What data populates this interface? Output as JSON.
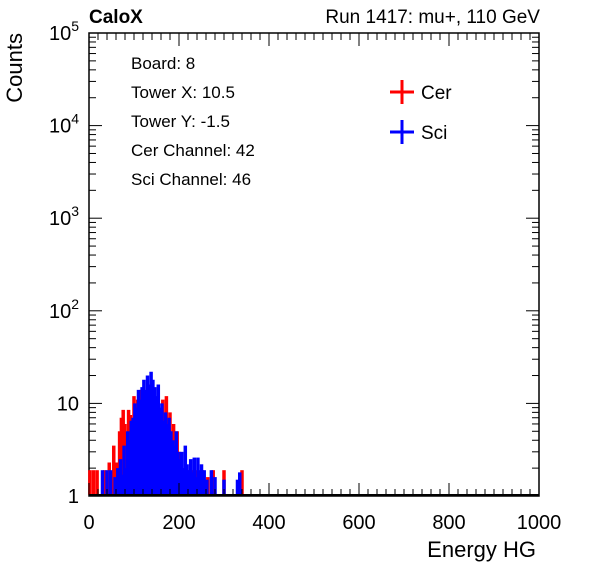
{
  "header": {
    "left_label": "CaloX",
    "right_label": "Run 1417: mu+, 110 GeV"
  },
  "info_box": {
    "board": "Board: 8",
    "tower_x": "Tower X: 10.5",
    "tower_y": "Tower Y: -1.5",
    "cer_channel": "Cer Channel: 42",
    "sci_channel": "Sci Channel: 46"
  },
  "chart_data": {
    "type": "line",
    "xlabel": "Energy HG",
    "ylabel": "Counts",
    "xlim": [
      0,
      1000
    ],
    "ylim": [
      1,
      100000
    ],
    "y_scale": "log",
    "x_ticks": [
      "0",
      "200",
      "400",
      "600",
      "800",
      "1000"
    ],
    "y_ticks": [
      {
        "value": 1,
        "base": "1",
        "exp": ""
      },
      {
        "value": 10,
        "base": "10",
        "exp": ""
      },
      {
        "value": 100,
        "base": "10",
        "exp": "2"
      },
      {
        "value": 1000,
        "base": "10",
        "exp": "3"
      },
      {
        "value": 10000,
        "base": "10",
        "exp": "4"
      },
      {
        "value": 100000,
        "base": "10",
        "exp": "5"
      }
    ],
    "legend_position": "top-right",
    "series": [
      {
        "name": "Cer",
        "color": "#ff0000",
        "points": [
          [
            2,
            1.9
          ],
          [
            10,
            1.9
          ],
          [
            18,
            1.9
          ],
          [
            35,
            1.9
          ],
          [
            45,
            2.3
          ],
          [
            55,
            3.5
          ],
          [
            62,
            2.3
          ],
          [
            68,
            5
          ],
          [
            72,
            7
          ],
          [
            76,
            8.5
          ],
          [
            80,
            6
          ],
          [
            84,
            4.5
          ],
          [
            88,
            8.5
          ],
          [
            92,
            7.5
          ],
          [
            96,
            6
          ],
          [
            100,
            12
          ],
          [
            104,
            8
          ],
          [
            108,
            11
          ],
          [
            112,
            9
          ],
          [
            116,
            14
          ],
          [
            120,
            10
          ],
          [
            124,
            13
          ],
          [
            128,
            11
          ],
          [
            132,
            16
          ],
          [
            136,
            12
          ],
          [
            140,
            9
          ],
          [
            144,
            14
          ],
          [
            148,
            10
          ],
          [
            152,
            6
          ],
          [
            156,
            8
          ],
          [
            160,
            4
          ],
          [
            164,
            11
          ],
          [
            168,
            5.5
          ],
          [
            172,
            12
          ],
          [
            176,
            7
          ],
          [
            180,
            8
          ],
          [
            184,
            4
          ],
          [
            188,
            6
          ],
          [
            192,
            3.5
          ],
          [
            196,
            5
          ],
          [
            200,
            3
          ],
          [
            204,
            2.5
          ],
          [
            208,
            2
          ],
          [
            212,
            1.6
          ],
          [
            216,
            1.9
          ],
          [
            220,
            1.9
          ],
          [
            226,
            1.9
          ],
          [
            232,
            1.9
          ],
          [
            240,
            1.9
          ],
          [
            252,
            1.9
          ],
          [
            264,
            1.6
          ],
          [
            276,
            1.9
          ],
          [
            300,
            1.9
          ],
          [
            335,
            1.5
          ],
          [
            340,
            1.9
          ]
        ]
      },
      {
        "name": "Sci",
        "color": "#0000ff",
        "points": [
          [
            30,
            1.9
          ],
          [
            40,
            1.9
          ],
          [
            48,
            1.9
          ],
          [
            58,
            1.6
          ],
          [
            64,
            2
          ],
          [
            70,
            2.5
          ],
          [
            74,
            1.7
          ],
          [
            78,
            3.5
          ],
          [
            82,
            2
          ],
          [
            86,
            5
          ],
          [
            90,
            4
          ],
          [
            94,
            6.5
          ],
          [
            98,
            7
          ],
          [
            102,
            10
          ],
          [
            106,
            9
          ],
          [
            110,
            14
          ],
          [
            114,
            11
          ],
          [
            118,
            15
          ],
          [
            122,
            18
          ],
          [
            126,
            14
          ],
          [
            130,
            20
          ],
          [
            134,
            16
          ],
          [
            138,
            22
          ],
          [
            142,
            18
          ],
          [
            146,
            15
          ],
          [
            150,
            12
          ],
          [
            154,
            16
          ],
          [
            158,
            9
          ],
          [
            162,
            10
          ],
          [
            166,
            6.5
          ],
          [
            170,
            8
          ],
          [
            174,
            6
          ],
          [
            178,
            7
          ],
          [
            182,
            5
          ],
          [
            186,
            4
          ],
          [
            190,
            3.5
          ],
          [
            194,
            5
          ],
          [
            198,
            3
          ],
          [
            202,
            2.5
          ],
          [
            206,
            3
          ],
          [
            210,
            2
          ],
          [
            214,
            3.5
          ],
          [
            218,
            2.2
          ],
          [
            222,
            1.9
          ],
          [
            226,
            2.5
          ],
          [
            230,
            1.8
          ],
          [
            234,
            2.6
          ],
          [
            238,
            1.6
          ],
          [
            242,
            2.6
          ],
          [
            246,
            1.9
          ],
          [
            250,
            2.2
          ],
          [
            256,
            1.9
          ],
          [
            262,
            1.5
          ],
          [
            272,
            1.9
          ],
          [
            280,
            1.6
          ],
          [
            300,
            1.5
          ],
          [
            330,
            1.5
          ],
          [
            335,
            1.8
          ]
        ]
      }
    ]
  }
}
